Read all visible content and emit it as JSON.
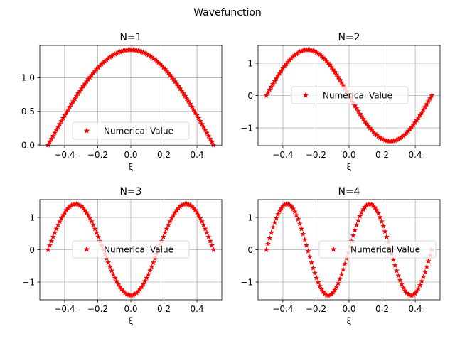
{
  "figure": {
    "suptitle": "Wavefunction"
  },
  "legend": {
    "label": "Numerical Value"
  },
  "colors": {
    "marker": "#ff0000",
    "grid": "#b0b0b0",
    "frame": "#000000",
    "background": "#ffffff"
  },
  "chart_data": [
    {
      "type": "scatter",
      "title": "N=1",
      "n": 1,
      "xlabel": "ξ",
      "ylabel": "",
      "x_range": [
        -0.5,
        0.5
      ],
      "points": 100,
      "function": "sqrt(2)*cos(pi*x)",
      "xlim": [
        -0.55,
        0.55
      ],
      "ylim": [
        -0.01,
        1.48
      ],
      "xticks": [
        -0.4,
        -0.2,
        0.0,
        0.2,
        0.4
      ],
      "xtick_labels": [
        "−0.4",
        "−0.2",
        "0.0",
        "0.2",
        "0.4"
      ],
      "yticks": [
        0.0,
        0.5,
        1.0
      ],
      "ytick_labels": [
        "0.0",
        "0.5",
        "1.0"
      ],
      "grid": true,
      "legend_position": "bottom-center",
      "series": [
        {
          "name": "Numerical Value",
          "marker": "star",
          "color": "#ff0000"
        }
      ]
    },
    {
      "type": "scatter",
      "title": "N=2",
      "n": 2,
      "xlabel": "ξ",
      "ylabel": "",
      "x_range": [
        -0.5,
        0.5
      ],
      "points": 100,
      "function": "-sqrt(2)*sin(2*pi*x)",
      "xlim": [
        -0.55,
        0.55
      ],
      "ylim": [
        -1.55,
        1.55
      ],
      "xticks": [
        -0.4,
        -0.2,
        0.0,
        0.2,
        0.4
      ],
      "xtick_labels": [
        "−0.4",
        "−0.2",
        "0.0",
        "0.2",
        "0.4"
      ],
      "yticks": [
        -1,
        0,
        1
      ],
      "ytick_labels": [
        "−1",
        "0",
        "1"
      ],
      "grid": true,
      "legend_position": "center",
      "series": [
        {
          "name": "Numerical Value",
          "marker": "star",
          "color": "#ff0000"
        }
      ]
    },
    {
      "type": "scatter",
      "title": "N=3",
      "n": 3,
      "xlabel": "ξ",
      "ylabel": "",
      "x_range": [
        -0.5,
        0.5
      ],
      "points": 100,
      "function": "-sqrt(2)*cos(3*pi*x)",
      "xlim": [
        -0.55,
        0.55
      ],
      "ylim": [
        -1.55,
        1.55
      ],
      "xticks": [
        -0.4,
        -0.2,
        0.0,
        0.2,
        0.4
      ],
      "xtick_labels": [
        "−0.4",
        "−0.2",
        "0.0",
        "0.2",
        "0.4"
      ],
      "yticks": [
        -1,
        0,
        1
      ],
      "ytick_labels": [
        "−1",
        "0",
        "1"
      ],
      "grid": true,
      "legend_position": "center",
      "series": [
        {
          "name": "Numerical Value",
          "marker": "star",
          "color": "#ff0000"
        }
      ]
    },
    {
      "type": "scatter",
      "title": "N=4",
      "n": 4,
      "xlabel": "ξ",
      "ylabel": "",
      "x_range": [
        -0.5,
        0.5
      ],
      "points": 100,
      "function": "sqrt(2)*sin(4*pi*x)",
      "xlim": [
        -0.55,
        0.55
      ],
      "ylim": [
        -1.55,
        1.55
      ],
      "xticks": [
        -0.4,
        -0.2,
        0.0,
        0.2,
        0.4
      ],
      "xtick_labels": [
        "−0.4",
        "−0.2",
        "0.0",
        "0.2",
        "0.4"
      ],
      "yticks": [
        -1,
        0,
        1
      ],
      "ytick_labels": [
        "−1",
        "0",
        "1"
      ],
      "grid": true,
      "legend_position": "center-right",
      "series": [
        {
          "name": "Numerical Value",
          "marker": "star",
          "color": "#ff0000"
        }
      ]
    }
  ]
}
